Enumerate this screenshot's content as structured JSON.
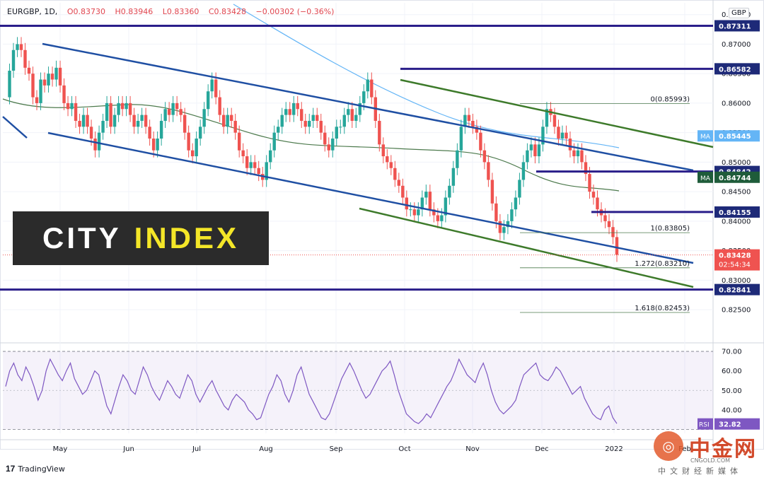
{
  "header": {
    "symbol": "EURGBP, 1D,",
    "open": "O0.83730",
    "high": "H0.83946",
    "low": "L0.83360",
    "close": "C0.83428",
    "change": "−0.00302 (−0.36%)"
  },
  "currency": "GBP",
  "brand": {
    "word1": "CITY",
    "word2": "INDEX"
  },
  "footer": "TradingView",
  "watermark": {
    "cn": "中金网",
    "url": "CNGOLD.COM",
    "sub": "中文财经新媒体"
  },
  "colors": {
    "up": "#26a69a",
    "down": "#ef5350",
    "channel_blue": "#1f4fa3",
    "channel_green": "#3d7a2a",
    "hline": "#2a1e8a",
    "ma_blue": "#64b5f6",
    "ma_green": "#4d7a4d",
    "rsi": "#7e57c2"
  },
  "chart_data": [
    {
      "type": "candlestick",
      "title": "EURGBP, 1D",
      "ylim": [
        0.8195,
        0.877
      ],
      "price_ticks": [
        "0.87500",
        "0.87000",
        "0.86500",
        "0.86000",
        "0.85500",
        "0.85000",
        "0.84500",
        "0.84000",
        "0.83500",
        "0.83000",
        "0.82500"
      ],
      "x_labels": [
        "May",
        "Jun",
        "Jul",
        "Aug",
        "Sep",
        "Oct",
        "Nov",
        "Dec",
        "2022",
        "Feb"
      ],
      "price_path": [
        0.861,
        0.8655,
        0.869,
        0.87,
        0.869,
        0.866,
        0.865,
        0.861,
        0.86,
        0.864,
        0.863,
        0.865,
        0.864,
        0.866,
        0.863,
        0.86,
        0.859,
        0.86,
        0.857,
        0.856,
        0.858,
        0.856,
        0.854,
        0.852,
        0.855,
        0.857,
        0.86,
        0.856,
        0.858,
        0.86,
        0.859,
        0.86,
        0.858,
        0.856,
        0.857,
        0.858,
        0.856,
        0.854,
        0.852,
        0.854,
        0.857,
        0.859,
        0.858,
        0.86,
        0.859,
        0.858,
        0.855,
        0.852,
        0.851,
        0.854,
        0.856,
        0.859,
        0.862,
        0.864,
        0.861,
        0.858,
        0.856,
        0.858,
        0.857,
        0.855,
        0.852,
        0.851,
        0.849,
        0.85,
        0.849,
        0.848,
        0.847,
        0.85,
        0.852,
        0.855,
        0.856,
        0.858,
        0.859,
        0.858,
        0.86,
        0.859,
        0.857,
        0.856,
        0.857,
        0.858,
        0.857,
        0.855,
        0.853,
        0.852,
        0.854,
        0.856,
        0.856,
        0.858,
        0.859,
        0.857,
        0.858,
        0.86,
        0.862,
        0.864,
        0.861,
        0.857,
        0.853,
        0.851,
        0.85,
        0.849,
        0.847,
        0.846,
        0.844,
        0.842,
        0.842,
        0.841,
        0.842,
        0.844,
        0.845,
        0.842,
        0.841,
        0.84,
        0.841,
        0.844,
        0.846,
        0.849,
        0.852,
        0.856,
        0.858,
        0.857,
        0.856,
        0.855,
        0.852,
        0.85,
        0.847,
        0.843,
        0.84,
        0.838,
        0.839,
        0.84,
        0.842,
        0.844,
        0.847,
        0.85,
        0.852,
        0.853,
        0.851,
        0.853,
        0.856,
        0.859,
        0.858,
        0.856,
        0.854,
        0.855,
        0.854,
        0.852,
        0.851,
        0.852,
        0.85,
        0.848,
        0.845,
        0.844,
        0.842,
        0.841,
        0.84,
        0.839,
        0.8373,
        0.8343
      ],
      "horizontal_levels": [
        {
          "label": "0.87311",
          "value": 0.87311
        },
        {
          "label": "0.86582",
          "value": 0.86582
        },
        {
          "label": "0.84842",
          "value": 0.84842
        },
        {
          "label": "0.84155",
          "value": 0.84155
        },
        {
          "label": "0.82841",
          "value": 0.82841
        }
      ],
      "moving_averages": [
        {
          "name": "MA",
          "label": "0.85445",
          "value": 0.85445
        },
        {
          "name": "MA",
          "label": "0.84744",
          "value": 0.84744
        }
      ],
      "fibonacci": [
        {
          "label": "0(0.85993)",
          "value": 0.85993
        },
        {
          "label": "1(0.83805)",
          "value": 0.83805
        },
        {
          "label": "1.272(0.83210)",
          "value": 0.8321
        },
        {
          "label": "1.618(0.82453)",
          "value": 0.82453
        }
      ],
      "last": {
        "label": "0.83428",
        "countdown": "02:54:34",
        "value": 0.83428
      }
    },
    {
      "type": "line",
      "title": "RSI",
      "ylim": [
        28,
        74
      ],
      "ticks": [
        "70.00",
        "60.00",
        "50.00",
        "40.00"
      ],
      "tick_values": [
        70,
        60,
        50,
        40
      ],
      "values": [
        52,
        60,
        64,
        58,
        55,
        62,
        58,
        52,
        45,
        50,
        60,
        66,
        62,
        58,
        55,
        60,
        64,
        56,
        52,
        48,
        50,
        55,
        60,
        58,
        50,
        42,
        38,
        45,
        52,
        58,
        55,
        50,
        48,
        55,
        62,
        58,
        52,
        48,
        45,
        50,
        55,
        52,
        48,
        46,
        52,
        58,
        55,
        48,
        44,
        48,
        52,
        55,
        50,
        46,
        42,
        40,
        45,
        48,
        46,
        44,
        40,
        38,
        35,
        36,
        42,
        48,
        52,
        58,
        55,
        48,
        44,
        50,
        58,
        62,
        55,
        48,
        44,
        40,
        36,
        35,
        38,
        44,
        50,
        56,
        60,
        64,
        60,
        55,
        50,
        46,
        48,
        52,
        56,
        60,
        62,
        65,
        58,
        50,
        44,
        38,
        36,
        34,
        33,
        35,
        38,
        36,
        40,
        44,
        48,
        52,
        55,
        60,
        66,
        62,
        58,
        56,
        54,
        60,
        64,
        58,
        50,
        44,
        40,
        38,
        40,
        42,
        45,
        52,
        58,
        60,
        62,
        64,
        58,
        56,
        55,
        58,
        62,
        60,
        56,
        52,
        48,
        50,
        52,
        46,
        42,
        38,
        36,
        35,
        40,
        42,
        36,
        33
      ],
      "last": {
        "name": "RSI",
        "label": "32.82",
        "value": 32.82
      }
    }
  ]
}
